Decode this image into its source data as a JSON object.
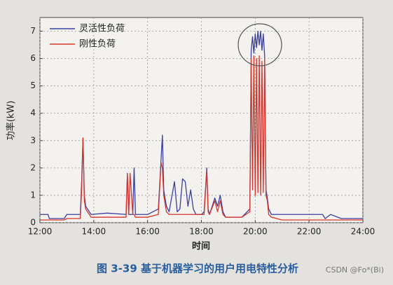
{
  "chart_data": {
    "type": "line",
    "ylabel": "功率(kW)",
    "xlabel": "时间",
    "caption": "图 3-39  基于机器学习的用户用电特性分析",
    "watermark": "CSDN @Fo*(Bi)",
    "x": [
      12,
      12.3,
      12.35,
      12.9,
      13.0,
      13.5,
      13.55,
      13.6,
      13.65,
      13.7,
      13.9,
      14.5,
      15.2,
      15.25,
      15.3,
      15.35,
      15.45,
      15.5,
      15.55,
      16.0,
      16.4,
      16.5,
      16.55,
      16.6,
      16.7,
      16.8,
      17.0,
      17.1,
      17.2,
      17.3,
      17.4,
      17.5,
      17.6,
      17.7,
      17.8,
      18.0,
      18.1,
      18.2,
      18.25,
      18.3,
      18.5,
      18.6,
      18.7,
      18.8,
      18.9,
      19.5,
      19.8,
      19.85,
      19.9,
      19.95,
      20.0,
      20.05,
      20.1,
      20.15,
      20.2,
      20.25,
      20.3,
      20.35,
      20.4,
      20.45,
      20.5,
      20.6,
      21.0,
      22.5,
      22.6,
      22.8,
      23.2,
      24
    ],
    "series": [
      {
        "name": "灵活性负荷",
        "color": "#3a3fa0",
        "values": [
          0.3,
          0.3,
          0.15,
          0.15,
          0.3,
          0.3,
          1.5,
          3.1,
          1.0,
          0.6,
          0.3,
          0.35,
          0.3,
          1.8,
          0.3,
          0.3,
          0.3,
          2.0,
          0.3,
          0.3,
          0.5,
          2.3,
          3.2,
          1.2,
          0.6,
          0.4,
          1.5,
          0.4,
          0.5,
          1.6,
          1.5,
          0.6,
          1.2,
          0.5,
          0.3,
          0.3,
          0.4,
          2.0,
          0.5,
          0.3,
          0.9,
          0.6,
          1.0,
          0.4,
          0.2,
          0.2,
          0.5,
          6.3,
          6.8,
          6.2,
          6.9,
          6.4,
          7.0,
          6.5,
          7.0,
          6.3,
          6.9,
          6.1,
          1.2,
          0.9,
          0.5,
          0.3,
          0.3,
          0.3,
          0.15,
          0.3,
          0.15,
          0.15
        ]
      },
      {
        "name": "刚性负荷",
        "color": "#d8342c",
        "values": [
          0.1,
          0.1,
          0.1,
          0.1,
          0.15,
          0.15,
          1.2,
          3.1,
          0.8,
          0.5,
          0.2,
          0.2,
          0.2,
          1.8,
          0.3,
          1.8,
          0.3,
          0.3,
          0.2,
          0.2,
          0.3,
          2.2,
          2.0,
          1.0,
          0.4,
          0.3,
          0.3,
          0.3,
          0.3,
          0.3,
          0.3,
          0.3,
          0.3,
          0.3,
          0.3,
          0.3,
          0.3,
          1.9,
          0.4,
          0.3,
          0.8,
          0.4,
          0.8,
          0.3,
          0.2,
          0.2,
          0.4,
          6.0,
          1.2,
          6.1,
          1.0,
          6.0,
          1.1,
          6.1,
          1.0,
          5.9,
          1.1,
          6.0,
          1.0,
          0.8,
          0.3,
          0.2,
          0.1,
          0.1,
          0.1,
          0.1,
          0.1,
          0.1
        ]
      }
    ],
    "xlim": [
      12,
      24
    ],
    "xticks": [
      {
        "value": 12,
        "label": "12:00"
      },
      {
        "value": 14,
        "label": "14:00"
      },
      {
        "value": 16,
        "label": "16:00"
      },
      {
        "value": 18,
        "label": "18:00"
      },
      {
        "value": 20,
        "label": "20:00"
      },
      {
        "value": 22,
        "label": "22:00"
      },
      {
        "value": 24,
        "label": "24:00"
      }
    ],
    "ylim": [
      0,
      7.5
    ],
    "yticks": [
      0,
      1,
      2,
      3,
      4,
      5,
      6,
      7
    ],
    "grid": true,
    "legend": "upper-left"
  }
}
